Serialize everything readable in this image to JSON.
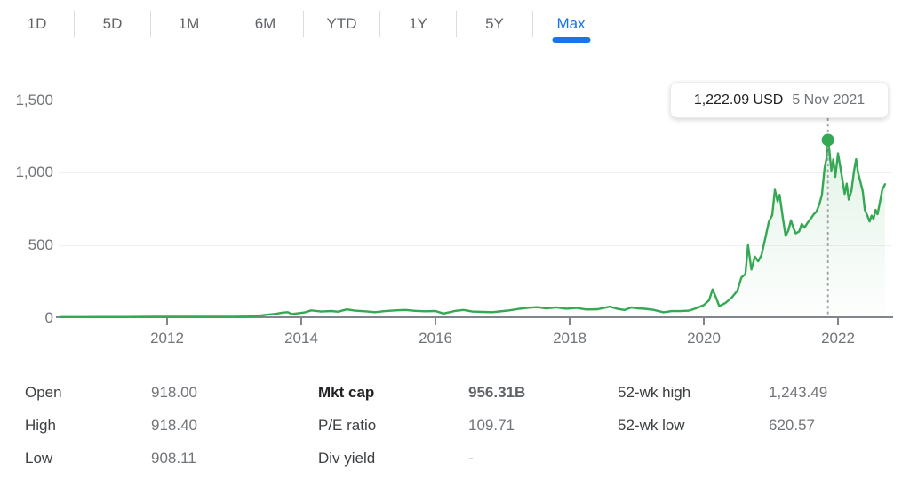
{
  "colors": {
    "accent": "#1a73e8",
    "chart_green": "#34a853",
    "axis_gray": "#80868b",
    "text_dark": "#3c4043",
    "text_muted": "#70757a"
  },
  "tabs": {
    "items": [
      {
        "label": "1D",
        "selected": false
      },
      {
        "label": "5D",
        "selected": false
      },
      {
        "label": "1M",
        "selected": false
      },
      {
        "label": "6M",
        "selected": false
      },
      {
        "label": "YTD",
        "selected": false
      },
      {
        "label": "1Y",
        "selected": false
      },
      {
        "label": "5Y",
        "selected": false
      },
      {
        "label": "Max",
        "selected": true
      }
    ]
  },
  "chart_data": {
    "type": "line",
    "xlabel": "",
    "ylabel": "",
    "x_ticks": [
      2012,
      2014,
      2016,
      2018,
      2020,
      2022
    ],
    "x_tick_labels": [
      "2012",
      "2014",
      "2016",
      "2018",
      "2020",
      "2022"
    ],
    "y_ticks": [
      0,
      500,
      1000,
      1500
    ],
    "y_tick_labels": [
      "0",
      "500",
      "1,000",
      "1,500"
    ],
    "ylim": [
      0,
      1500
    ],
    "xlim": [
      2010.4,
      2022.75
    ],
    "grid": true,
    "line_color": "#34a853",
    "marker": {
      "x": 2021.85,
      "value": 1222.09,
      "price_label": "1,222.09 USD",
      "date_label": "5 Nov 2021"
    },
    "points": [
      [
        2010.42,
        4
      ],
      [
        2010.7,
        4
      ],
      [
        2011.0,
        5
      ],
      [
        2011.4,
        5
      ],
      [
        2011.8,
        6
      ],
      [
        2012.2,
        6
      ],
      [
        2012.5,
        7
      ],
      [
        2012.8,
        6
      ],
      [
        2013.0,
        7
      ],
      [
        2013.2,
        8
      ],
      [
        2013.35,
        12
      ],
      [
        2013.5,
        21
      ],
      [
        2013.62,
        26
      ],
      [
        2013.72,
        35
      ],
      [
        2013.8,
        38
      ],
      [
        2013.86,
        25
      ],
      [
        2013.95,
        30
      ],
      [
        2014.05,
        36
      ],
      [
        2014.15,
        50
      ],
      [
        2014.3,
        42
      ],
      [
        2014.45,
        46
      ],
      [
        2014.55,
        41
      ],
      [
        2014.68,
        57
      ],
      [
        2014.8,
        48
      ],
      [
        2014.95,
        44
      ],
      [
        2015.1,
        38
      ],
      [
        2015.25,
        45
      ],
      [
        2015.4,
        50
      ],
      [
        2015.55,
        53
      ],
      [
        2015.7,
        47
      ],
      [
        2015.85,
        44
      ],
      [
        2016.0,
        46
      ],
      [
        2016.12,
        29
      ],
      [
        2016.3,
        47
      ],
      [
        2016.42,
        53
      ],
      [
        2016.55,
        42
      ],
      [
        2016.7,
        40
      ],
      [
        2016.85,
        38
      ],
      [
        2016.95,
        43
      ],
      [
        2017.1,
        50
      ],
      [
        2017.25,
        61
      ],
      [
        2017.4,
        69
      ],
      [
        2017.52,
        72
      ],
      [
        2017.65,
        64
      ],
      [
        2017.8,
        71
      ],
      [
        2017.95,
        62
      ],
      [
        2018.1,
        67
      ],
      [
        2018.25,
        56
      ],
      [
        2018.42,
        58
      ],
      [
        2018.6,
        76
      ],
      [
        2018.72,
        60
      ],
      [
        2018.82,
        53
      ],
      [
        2018.92,
        70
      ],
      [
        2019.02,
        64
      ],
      [
        2019.12,
        61
      ],
      [
        2019.25,
        54
      ],
      [
        2019.4,
        37
      ],
      [
        2019.52,
        45
      ],
      [
        2019.65,
        45
      ],
      [
        2019.78,
        48
      ],
      [
        2019.9,
        67
      ],
      [
        2020.0,
        86
      ],
      [
        2020.08,
        120
      ],
      [
        2020.13,
        194
      ],
      [
        2020.18,
        140
      ],
      [
        2020.23,
        79
      ],
      [
        2020.32,
        100
      ],
      [
        2020.42,
        140
      ],
      [
        2020.5,
        186
      ],
      [
        2020.56,
        276
      ],
      [
        2020.62,
        300
      ],
      [
        2020.66,
        498
      ],
      [
        2020.71,
        331
      ],
      [
        2020.76,
        420
      ],
      [
        2020.81,
        388
      ],
      [
        2020.86,
        430
      ],
      [
        2020.92,
        555
      ],
      [
        2020.97,
        660
      ],
      [
        2021.02,
        705
      ],
      [
        2021.06,
        880
      ],
      [
        2021.1,
        800
      ],
      [
        2021.13,
        845
      ],
      [
        2021.18,
        680
      ],
      [
        2021.22,
        563
      ],
      [
        2021.26,
        600
      ],
      [
        2021.3,
        670
      ],
      [
        2021.33,
        625
      ],
      [
        2021.37,
        580
      ],
      [
        2021.42,
        592
      ],
      [
        2021.46,
        645
      ],
      [
        2021.5,
        620
      ],
      [
        2021.55,
        655
      ],
      [
        2021.6,
        685
      ],
      [
        2021.64,
        712
      ],
      [
        2021.68,
        730
      ],
      [
        2021.72,
        778
      ],
      [
        2021.76,
        845
      ],
      [
        2021.8,
        1028
      ],
      [
        2021.83,
        1100
      ],
      [
        2021.85,
        1222
      ],
      [
        2021.87,
        1155
      ],
      [
        2021.9,
        1012
      ],
      [
        2021.93,
        1088
      ],
      [
        2021.96,
        968
      ],
      [
        2022.0,
        1130
      ],
      [
        2022.03,
        1048
      ],
      [
        2022.07,
        935
      ],
      [
        2022.1,
        852
      ],
      [
        2022.13,
        922
      ],
      [
        2022.16,
        812
      ],
      [
        2022.2,
        872
      ],
      [
        2022.24,
        1012
      ],
      [
        2022.27,
        1090
      ],
      [
        2022.3,
        998
      ],
      [
        2022.33,
        942
      ],
      [
        2022.37,
        868
      ],
      [
        2022.4,
        742
      ],
      [
        2022.44,
        700
      ],
      [
        2022.47,
        662
      ],
      [
        2022.5,
        702
      ],
      [
        2022.53,
        680
      ],
      [
        2022.56,
        742
      ],
      [
        2022.59,
        712
      ],
      [
        2022.62,
        782
      ],
      [
        2022.66,
        880
      ],
      [
        2022.7,
        918
      ]
    ]
  },
  "stats": {
    "columns": [
      {
        "rows": [
          {
            "label": "Open",
            "value": "918.00"
          },
          {
            "label": "High",
            "value": "918.40"
          },
          {
            "label": "Low",
            "value": "908.11"
          }
        ]
      },
      {
        "rows": [
          {
            "label": "Mkt cap",
            "value": "956.31B",
            "bold": true
          },
          {
            "label": "P/E ratio",
            "value": "109.71"
          },
          {
            "label": "Div yield",
            "value": "-"
          }
        ]
      },
      {
        "rows": [
          {
            "label": "52-wk high",
            "value": "1,243.49"
          },
          {
            "label": "52-wk low",
            "value": "620.57"
          }
        ]
      }
    ]
  }
}
